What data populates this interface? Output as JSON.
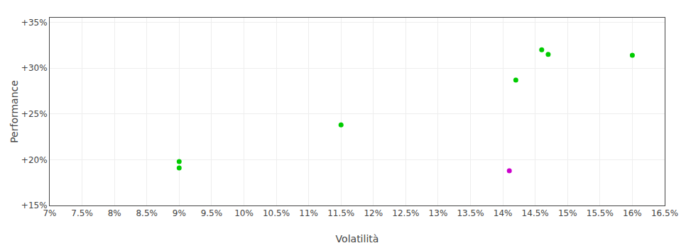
{
  "chart_data": {
    "type": "scatter",
    "xlabel": "Volatilità",
    "ylabel": "Performance",
    "xlim": [
      0.07,
      0.165
    ],
    "ylim": [
      0.15,
      0.355
    ],
    "xticks": [
      {
        "value": 0.07,
        "label": "7%"
      },
      {
        "value": 0.075,
        "label": "7.5%"
      },
      {
        "value": 0.08,
        "label": "8%"
      },
      {
        "value": 0.085,
        "label": "8.5%"
      },
      {
        "value": 0.09,
        "label": "9%"
      },
      {
        "value": 0.095,
        "label": "9.5%"
      },
      {
        "value": 0.1,
        "label": "10%"
      },
      {
        "value": 0.105,
        "label": "10.5%"
      },
      {
        "value": 0.11,
        "label": "11%"
      },
      {
        "value": 0.115,
        "label": "11.5%"
      },
      {
        "value": 0.12,
        "label": "12%"
      },
      {
        "value": 0.125,
        "label": "12.5%"
      },
      {
        "value": 0.13,
        "label": "13%"
      },
      {
        "value": 0.135,
        "label": "13.5%"
      },
      {
        "value": 0.14,
        "label": "14%"
      },
      {
        "value": 0.145,
        "label": "14.5%"
      },
      {
        "value": 0.15,
        "label": "15%"
      },
      {
        "value": 0.155,
        "label": "15.5%"
      },
      {
        "value": 0.16,
        "label": "16%"
      },
      {
        "value": 0.165,
        "label": "16.5%"
      }
    ],
    "yticks": [
      {
        "value": 0.15,
        "label": "+15%"
      },
      {
        "value": 0.2,
        "label": "+20%"
      },
      {
        "value": 0.25,
        "label": "+25%"
      },
      {
        "value": 0.3,
        "label": "+30%"
      },
      {
        "value": 0.35,
        "label": "+35%"
      }
    ],
    "grid": true,
    "series": [
      {
        "color": "#00cc00",
        "x": [
          0.09,
          0.09,
          0.115,
          0.142,
          0.146,
          0.147,
          0.16
        ],
        "values": [
          0.198,
          0.191,
          0.238,
          0.287,
          0.32,
          0.315,
          0.314
        ]
      },
      {
        "color": "#cc00cc",
        "x": [
          0.141
        ],
        "values": [
          0.188
        ]
      }
    ]
  }
}
